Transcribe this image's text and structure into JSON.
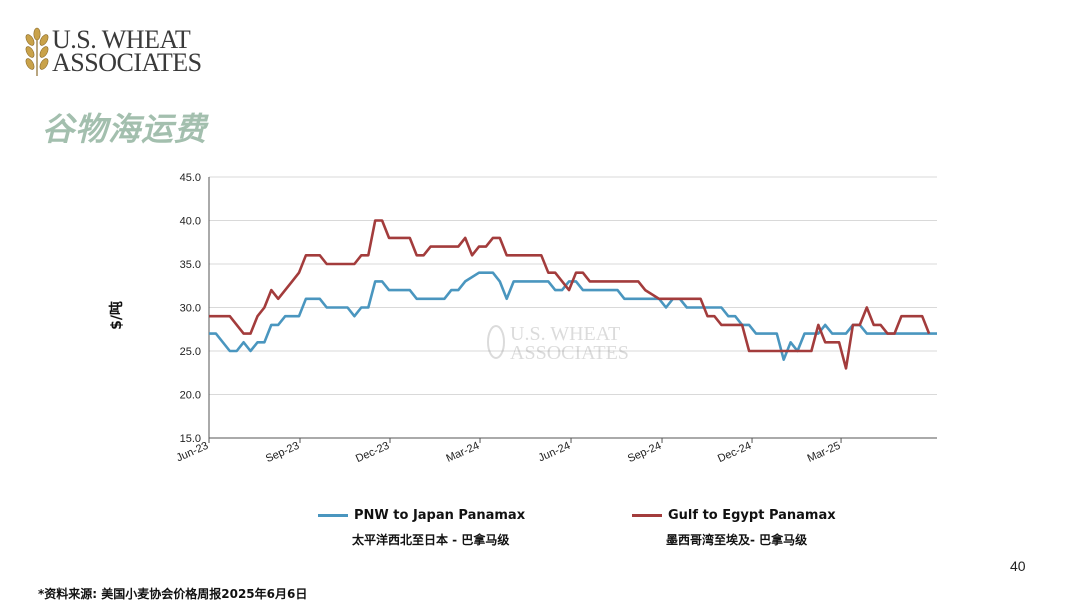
{
  "header": {
    "logo_line1": "U.S. WHEAT",
    "logo_line2": "ASSOCIATES",
    "title": "谷物海运费"
  },
  "watermark": {
    "line1": "U.S. WHEAT",
    "line2": "ASSOCIATES"
  },
  "footer": {
    "source": "*资料来源: 美国小麦协会价格周报2025年6月6日",
    "page_number": "40"
  },
  "colors": {
    "pnw": "#4a96bf",
    "gulf": "#a33c3c",
    "title": "#a3bfae",
    "grid": "#d9d9d9"
  },
  "chart_data": {
    "type": "line",
    "ylabel": "$/吨",
    "ylim": [
      15,
      45
    ],
    "yticks": [
      "15.0",
      "20.0",
      "25.0",
      "30.0",
      "35.0",
      "40.0",
      "45.0"
    ],
    "xlim": [
      "2023-06-01",
      "2025-06-06"
    ],
    "xticks": [
      {
        "label": "Jun-23",
        "date": "2023-06-01"
      },
      {
        "label": "Sep-23",
        "date": "2023-09-01"
      },
      {
        "label": "Dec-23",
        "date": "2023-12-01"
      },
      {
        "label": "Mar-24",
        "date": "2024-03-01"
      },
      {
        "label": "Jun-24",
        "date": "2024-06-01"
      },
      {
        "label": "Sep-24",
        "date": "2024-09-01"
      },
      {
        "label": "Dec-24",
        "date": "2024-12-01"
      },
      {
        "label": "Mar-25",
        "date": "2025-03-01"
      }
    ],
    "series": [
      {
        "name": "PNW to Japan Panamax",
        "subtitle": "太平洋西北至日本 - 巴拿马级",
        "color": "#4a96bf",
        "points": [
          [
            "2023-06-01",
            27
          ],
          [
            "2023-06-08",
            27
          ],
          [
            "2023-06-22",
            25
          ],
          [
            "2023-06-29",
            25
          ],
          [
            "2023-07-06",
            26
          ],
          [
            "2023-07-13",
            25
          ],
          [
            "2023-07-20",
            26
          ],
          [
            "2023-07-27",
            26
          ],
          [
            "2023-08-03",
            28
          ],
          [
            "2023-08-10",
            28
          ],
          [
            "2023-08-17",
            29
          ],
          [
            "2023-08-31",
            29
          ],
          [
            "2023-09-07",
            31
          ],
          [
            "2023-09-21",
            31
          ],
          [
            "2023-09-28",
            30
          ],
          [
            "2023-10-19",
            30
          ],
          [
            "2023-10-26",
            29
          ],
          [
            "2023-11-02",
            30
          ],
          [
            "2023-11-09",
            30
          ],
          [
            "2023-11-16",
            33
          ],
          [
            "2023-11-23",
            33
          ],
          [
            "2023-11-30",
            32
          ],
          [
            "2023-12-21",
            32
          ],
          [
            "2023-12-28",
            31
          ],
          [
            "2024-01-25",
            31
          ],
          [
            "2024-02-01",
            32
          ],
          [
            "2024-02-08",
            32
          ],
          [
            "2024-02-15",
            33
          ],
          [
            "2024-02-29",
            34
          ],
          [
            "2024-03-14",
            34
          ],
          [
            "2024-03-21",
            33
          ],
          [
            "2024-03-28",
            31
          ],
          [
            "2024-04-04",
            33
          ],
          [
            "2024-05-09",
            33
          ],
          [
            "2024-05-16",
            32
          ],
          [
            "2024-05-23",
            32
          ],
          [
            "2024-05-30",
            33
          ],
          [
            "2024-06-06",
            33
          ],
          [
            "2024-06-13",
            32
          ],
          [
            "2024-07-18",
            32
          ],
          [
            "2024-07-25",
            31
          ],
          [
            "2024-08-15",
            31
          ],
          [
            "2024-08-22",
            31
          ],
          [
            "2024-08-29",
            31
          ],
          [
            "2024-09-05",
            30
          ],
          [
            "2024-09-12",
            31
          ],
          [
            "2024-09-19",
            31
          ],
          [
            "2024-09-26",
            30
          ],
          [
            "2024-10-24",
            30
          ],
          [
            "2024-10-31",
            30
          ],
          [
            "2024-11-07",
            29
          ],
          [
            "2024-11-14",
            29
          ],
          [
            "2024-11-21",
            28
          ],
          [
            "2024-11-28",
            28
          ],
          [
            "2024-12-05",
            27
          ],
          [
            "2024-12-26",
            27
          ],
          [
            "2025-01-02",
            24
          ],
          [
            "2025-01-09",
            26
          ],
          [
            "2025-01-16",
            25
          ],
          [
            "2025-01-23",
            27
          ],
          [
            "2025-01-30",
            27
          ],
          [
            "2025-02-06",
            27
          ],
          [
            "2025-02-13",
            28
          ],
          [
            "2025-02-20",
            27
          ],
          [
            "2025-02-27",
            27
          ],
          [
            "2025-03-06",
            27
          ],
          [
            "2025-03-13",
            28
          ],
          [
            "2025-03-20",
            28
          ],
          [
            "2025-03-27",
            27
          ],
          [
            "2025-04-03",
            27
          ],
          [
            "2025-06-06",
            27
          ]
        ]
      },
      {
        "name": "Gulf to Egypt Panamax",
        "subtitle": "墨西哥湾至埃及- 巴拿马级",
        "color": "#a33c3c",
        "points": [
          [
            "2023-06-01",
            29
          ],
          [
            "2023-06-22",
            29
          ],
          [
            "2023-07-06",
            27
          ],
          [
            "2023-07-13",
            27
          ],
          [
            "2023-07-20",
            29
          ],
          [
            "2023-07-27",
            30
          ],
          [
            "2023-08-03",
            32
          ],
          [
            "2023-08-10",
            31
          ],
          [
            "2023-08-17",
            32
          ],
          [
            "2023-08-24",
            33
          ],
          [
            "2023-08-31",
            34
          ],
          [
            "2023-09-07",
            36
          ],
          [
            "2023-09-21",
            36
          ],
          [
            "2023-09-28",
            35
          ],
          [
            "2023-10-26",
            35
          ],
          [
            "2023-11-02",
            36
          ],
          [
            "2023-11-09",
            36
          ],
          [
            "2023-11-16",
            40
          ],
          [
            "2023-11-23",
            40
          ],
          [
            "2023-11-30",
            38
          ],
          [
            "2023-12-21",
            38
          ],
          [
            "2023-12-28",
            36
          ],
          [
            "2024-01-04",
            36
          ],
          [
            "2024-01-11",
            37
          ],
          [
            "2024-01-18",
            37
          ],
          [
            "2024-02-08",
            37
          ],
          [
            "2024-02-15",
            38
          ],
          [
            "2024-02-22",
            36
          ],
          [
            "2024-02-29",
            37
          ],
          [
            "2024-03-07",
            37
          ],
          [
            "2024-03-14",
            38
          ],
          [
            "2024-03-21",
            38
          ],
          [
            "2024-03-28",
            36
          ],
          [
            "2024-05-02",
            36
          ],
          [
            "2024-05-09",
            34
          ],
          [
            "2024-05-16",
            34
          ],
          [
            "2024-05-30",
            32
          ],
          [
            "2024-06-06",
            34
          ],
          [
            "2024-06-13",
            34
          ],
          [
            "2024-06-20",
            33
          ],
          [
            "2024-08-08",
            33
          ],
          [
            "2024-08-15",
            32
          ],
          [
            "2024-08-29",
            31
          ],
          [
            "2024-10-10",
            31
          ],
          [
            "2024-10-17",
            29
          ],
          [
            "2024-10-24",
            29
          ],
          [
            "2024-10-31",
            28
          ],
          [
            "2024-11-21",
            28
          ],
          [
            "2024-11-28",
            25
          ],
          [
            "2025-01-30",
            25
          ],
          [
            "2025-02-06",
            28
          ],
          [
            "2025-02-13",
            26
          ],
          [
            "2025-02-27",
            26
          ],
          [
            "2025-03-06",
            23
          ],
          [
            "2025-03-13",
            28
          ],
          [
            "2025-03-20",
            28
          ],
          [
            "2025-03-27",
            30
          ],
          [
            "2025-04-03",
            28
          ],
          [
            "2025-04-10",
            28
          ],
          [
            "2025-04-17",
            27
          ],
          [
            "2025-04-24",
            27
          ],
          [
            "2025-05-01",
            29
          ],
          [
            "2025-05-22",
            29
          ],
          [
            "2025-05-29",
            27
          ]
        ]
      }
    ]
  }
}
